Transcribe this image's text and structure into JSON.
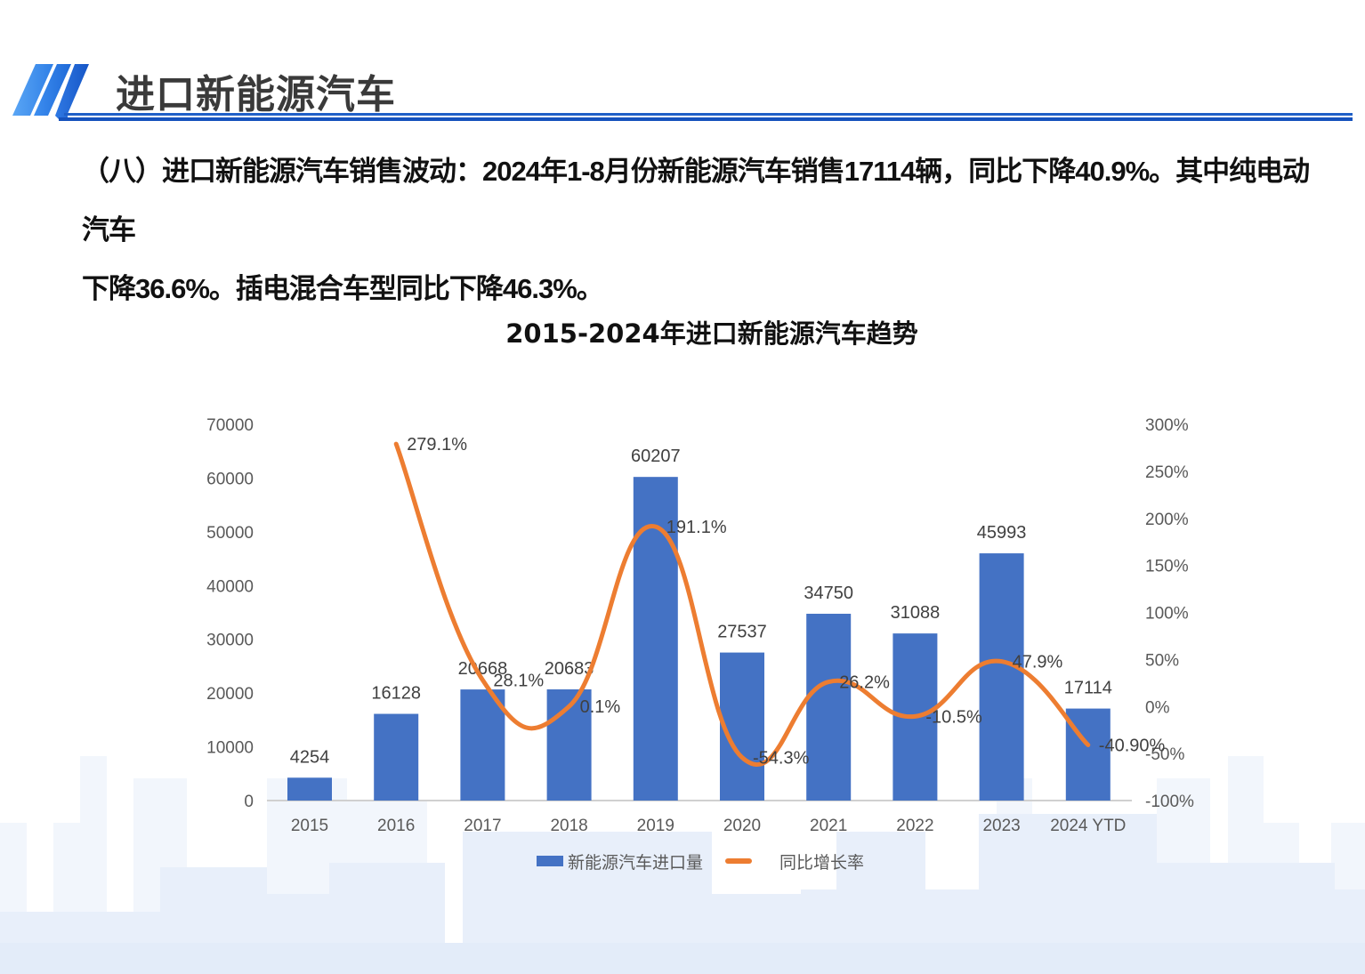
{
  "header": {
    "title": "进口新能源汽车",
    "accent_color": "#1f5fc8"
  },
  "body": {
    "paragraph_line1": "（八）进口新能源汽车销售波动：2024年1-8月份新能源汽车销售17114辆，同比下降40.9%。其中纯电动汽车",
    "paragraph_line2": "下降36.6%。插电混合车型同比下降46.3%。"
  },
  "chart": {
    "title_bold": "2015-2024",
    "title_rest": "年进口新能源汽车趋势",
    "legend_bar": "新能源汽车进口量",
    "legend_line": "同比增长率",
    "bar_color": "#4472c4",
    "line_color": "#ed7d31"
  },
  "chart_data": {
    "type": "bar",
    "title": "2015-2024年进口新能源汽车趋势",
    "categories": [
      "2015",
      "2016",
      "2017",
      "2018",
      "2019",
      "2020",
      "2021",
      "2022",
      "2023",
      "2024 YTD"
    ],
    "series": [
      {
        "name": "新能源汽车进口量",
        "type": "bar",
        "axis": "left",
        "values": [
          4254,
          16128,
          20668,
          20683,
          60207,
          27537,
          34750,
          31088,
          45993,
          17114
        ],
        "labels": [
          "4254",
          "16128",
          "20668",
          "20683",
          "60207",
          "27537",
          "34750",
          "31088",
          "45993",
          "17114"
        ]
      },
      {
        "name": "同比增长率",
        "type": "line",
        "axis": "right",
        "values": [
          null,
          279.1,
          28.1,
          0.1,
          191.1,
          -54.3,
          26.2,
          -10.5,
          47.9,
          -40.9
        ],
        "labels": [
          "",
          "279.1%",
          "28.1%",
          "0.1%",
          "191.1%",
          "-54.3%",
          "26.2%",
          "-10.5%",
          "47.9%",
          "-40.90%"
        ]
      }
    ],
    "left_axis": {
      "ylim": [
        0,
        70000
      ],
      "ticks": [
        "0",
        "10000",
        "20000",
        "30000",
        "40000",
        "50000",
        "60000",
        "70000"
      ]
    },
    "right_axis": {
      "ylim": [
        -100,
        300
      ],
      "ticks": [
        "-100%",
        "-50%",
        "0%",
        "50%",
        "100%",
        "150%",
        "200%",
        "250%",
        "300%"
      ]
    },
    "xlabel": "",
    "ylabel": "",
    "grid": false,
    "legend_position": "bottom"
  }
}
